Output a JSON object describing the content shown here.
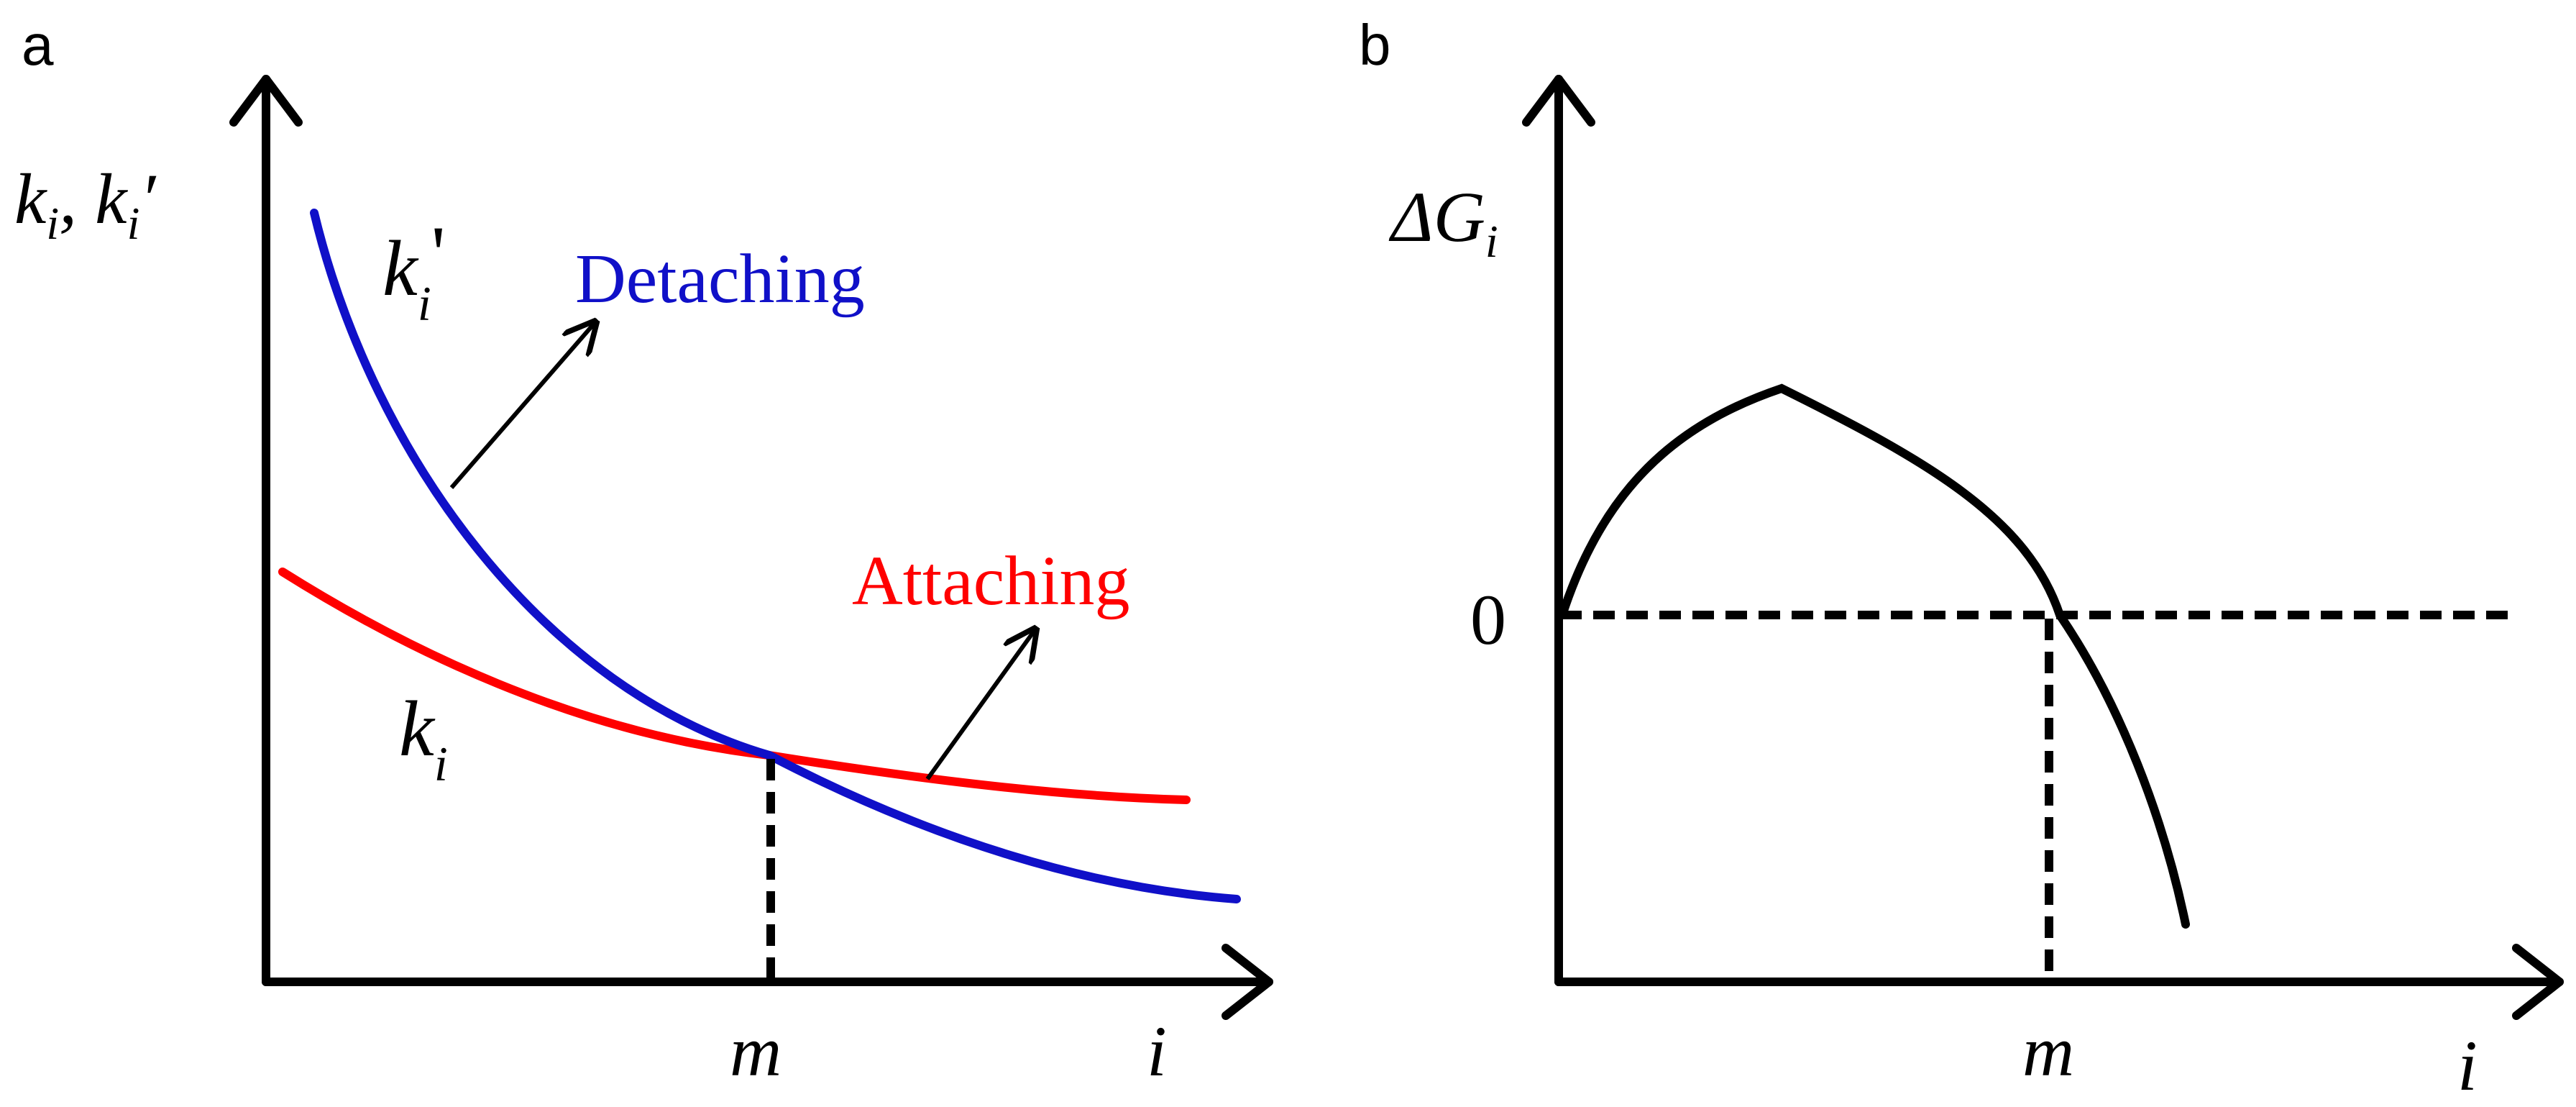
{
  "panel_a": {
    "panel_label": "a",
    "y_axis_label": {
      "main": "k",
      "sub": "i",
      "sep": ", ",
      "main2": "k",
      "sub2": "i",
      "prime": "′"
    },
    "x_axis_label": "i",
    "m_label": "m",
    "curve_detach_label": {
      "main": "k",
      "sub": "i",
      "prime": "'"
    },
    "curve_attach_label": {
      "main": "k",
      "sub": "i"
    },
    "detaching_text": "Detaching",
    "attaching_text": "Attaching",
    "colors": {
      "detaching": "#1010c8",
      "attaching": "#ff0000",
      "axis": "#000000"
    }
  },
  "panel_b": {
    "panel_label": "b",
    "y_axis_label": {
      "main": "ΔG",
      "sub": "i"
    },
    "x_axis_label": "i",
    "m_label": "m",
    "zero_label": "0",
    "colors": {
      "curve": "#000000",
      "axis": "#000000"
    }
  }
}
